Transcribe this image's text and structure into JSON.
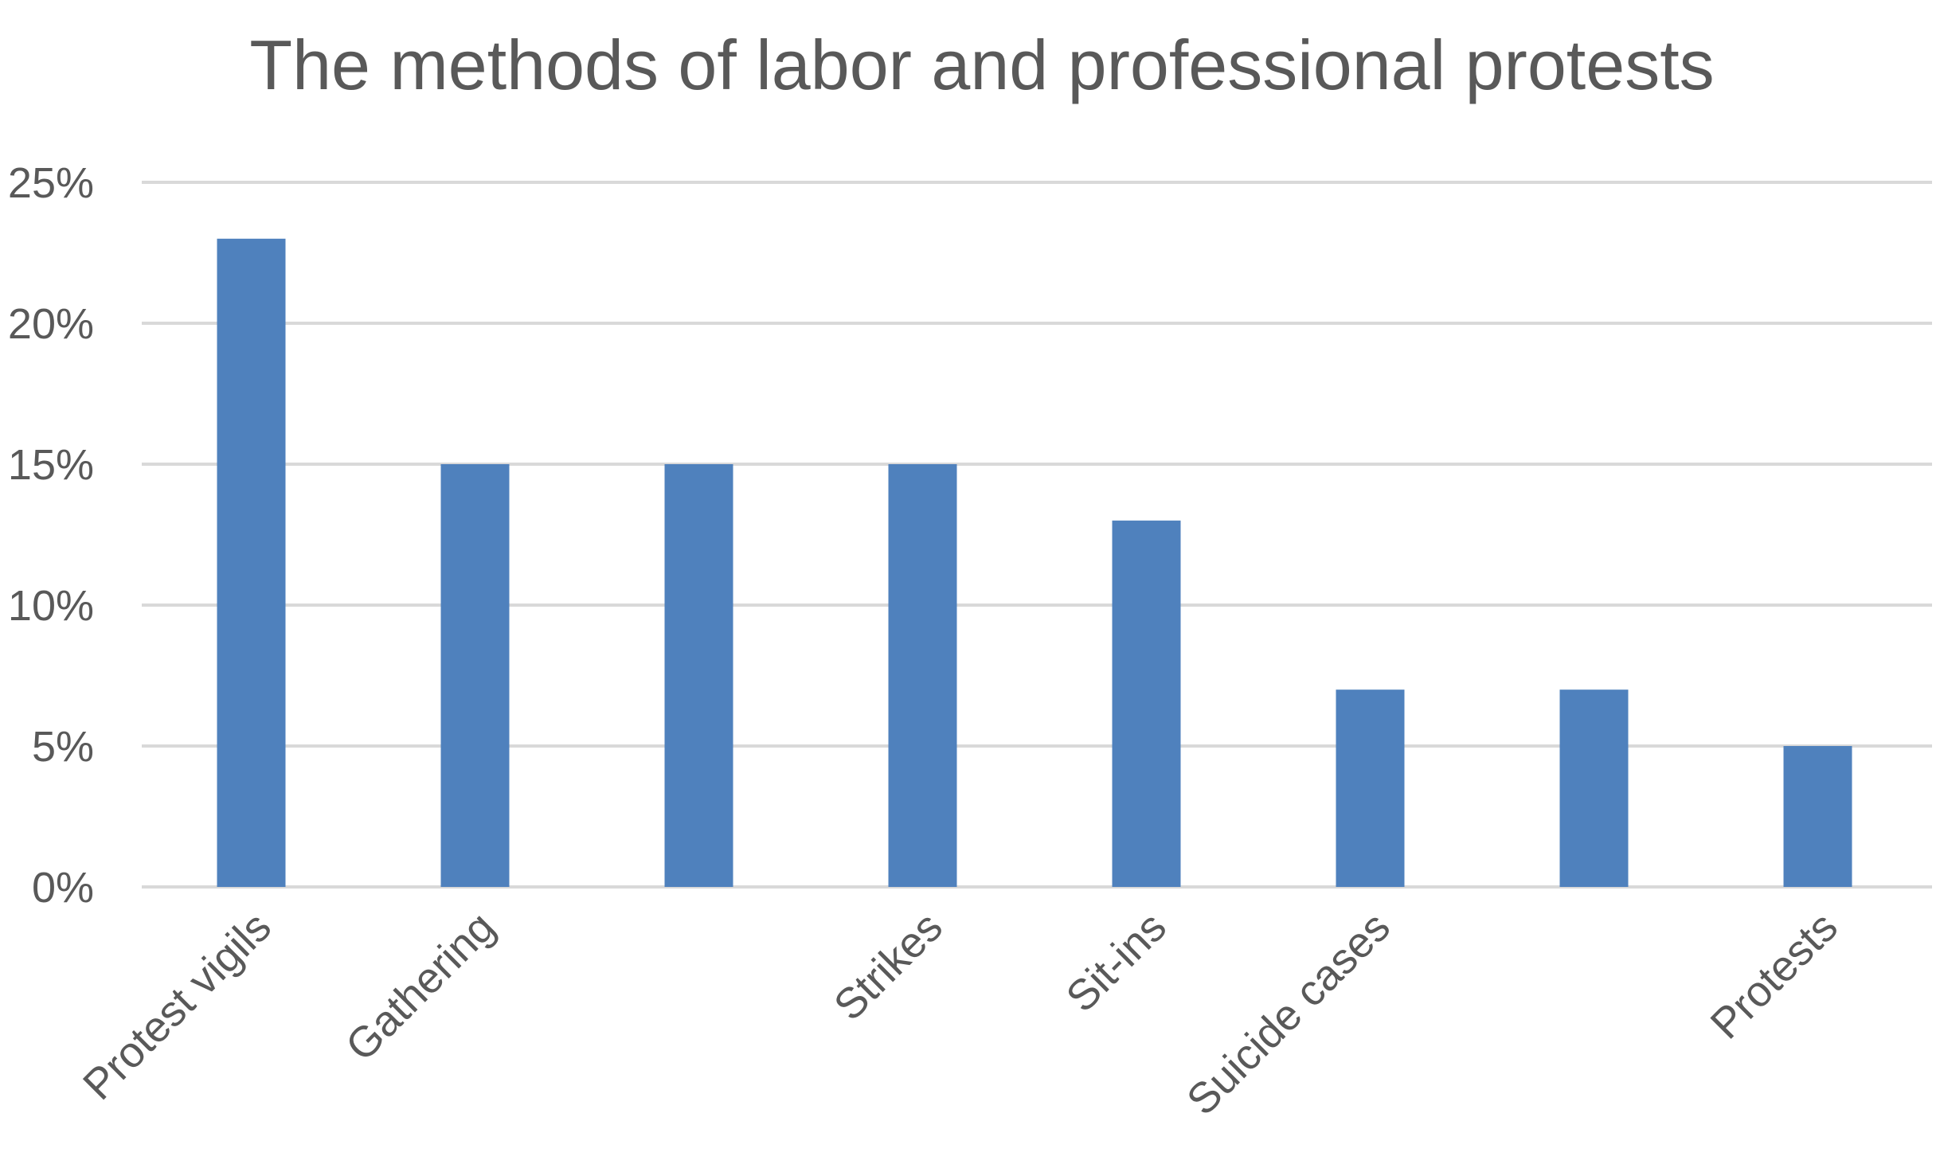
{
  "chart_data": {
    "type": "bar",
    "title": "The methods of labor and professional protests",
    "xlabel": "",
    "ylabel": "",
    "categories": [
      "Protest vigils",
      "Gathering",
      "",
      "Strikes",
      "Sit-ins",
      "Suicide cases",
      "",
      "Protests"
    ],
    "values": [
      23,
      15,
      15,
      15,
      13,
      7,
      7,
      5
    ],
    "ylim": [
      0,
      25
    ],
    "yticks": [
      0,
      5,
      10,
      15,
      20,
      25
    ],
    "ytick_labels": [
      "0%",
      "5%",
      "10%",
      "15%",
      "20%",
      "25%"
    ],
    "value_format": "percent",
    "grid": true,
    "legend": "none",
    "bar_color": "#4f81bd",
    "grid_color": "#d9d9d9",
    "text_color": "#595959"
  }
}
